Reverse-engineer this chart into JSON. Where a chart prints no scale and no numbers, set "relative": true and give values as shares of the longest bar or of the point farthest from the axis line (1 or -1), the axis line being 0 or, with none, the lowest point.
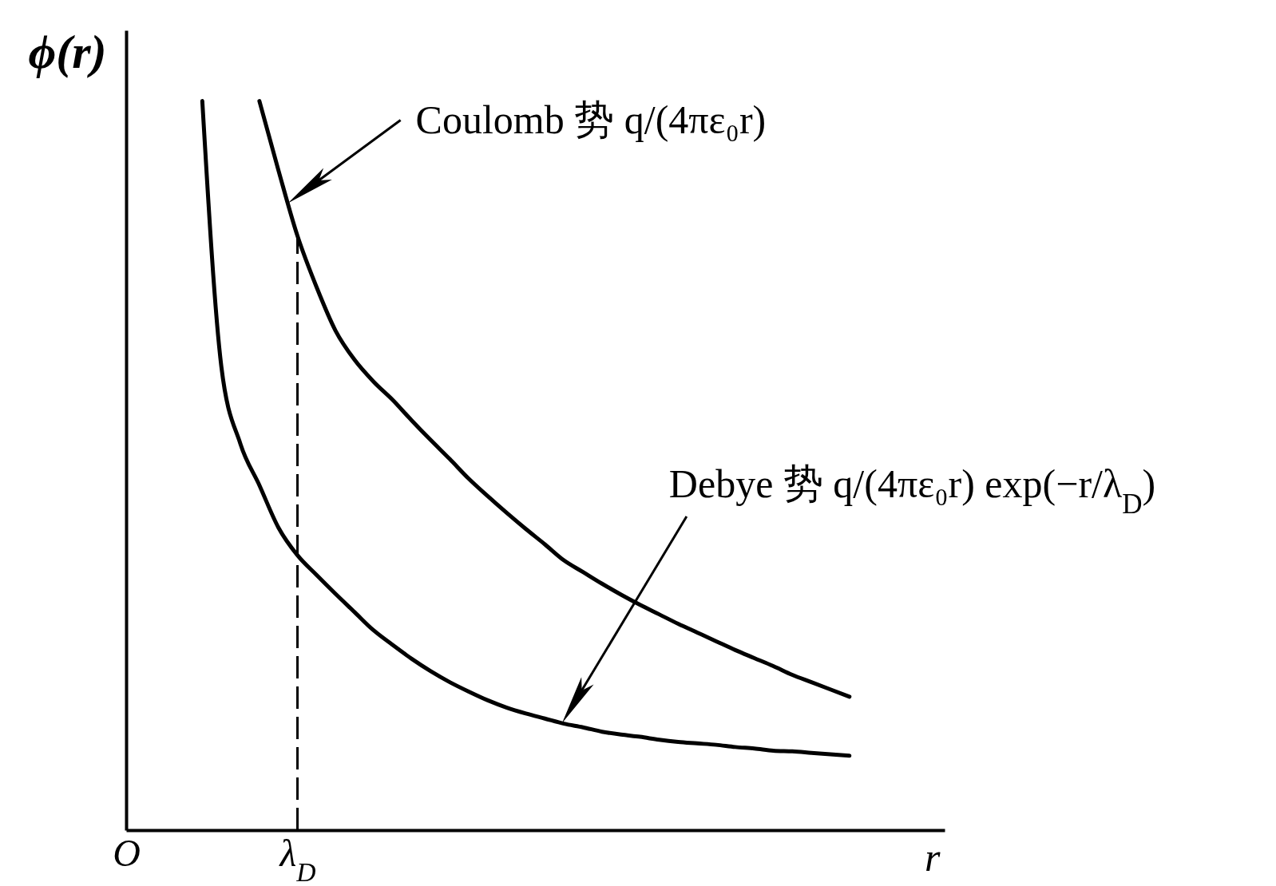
{
  "chart_data": {
    "type": "line",
    "relative": true,
    "ylabel": "ϕ(r)",
    "xlabel": "r",
    "tick_labels": "x",
    "categories": [
      "O",
      null,
      null,
      null,
      null,
      null,
      null,
      null,
      null,
      "λ$_{D}$",
      null,
      null,
      null,
      null,
      null,
      null,
      null,
      null,
      null,
      null,
      null,
      null,
      null,
      null,
      null,
      null,
      null,
      null,
      null,
      null,
      null,
      null,
      null,
      null,
      null,
      null,
      null,
      null,
      null,
      null,
      null,
      null,
      null,
      null
    ],
    "series": [
      {
        "color": "#000000",
        "values": [
          null,
          null,
          null,
          null,
          null,
          null,
          null,
          1.0,
          0.905,
          0.815,
          0.745,
          0.685,
          0.645,
          0.615,
          0.59,
          0.562,
          0.535,
          0.509,
          0.482,
          0.458,
          0.435,
          0.413,
          0.392,
          0.37,
          0.354,
          0.338,
          0.323,
          0.309,
          0.296,
          0.283,
          0.271,
          0.259,
          0.247,
          0.236,
          0.225,
          0.213,
          0.203,
          0.193,
          0.183,
          null,
          null,
          null,
          null,
          null
        ]
      },
      {
        "color": "#000000",
        "values": [
          null,
          null,
          null,
          null,
          1.0,
          0.636,
          0.53,
          0.473,
          0.415,
          0.377,
          0.35,
          0.324,
          0.299,
          0.274,
          0.254,
          0.235,
          0.218,
          0.203,
          0.19,
          0.178,
          0.168,
          0.16,
          0.153,
          0.146,
          0.141,
          0.135,
          0.131,
          0.128,
          0.124,
          0.121,
          0.119,
          0.117,
          0.114,
          0.112,
          0.109,
          0.108,
          0.106,
          0.104,
          0.102,
          null,
          null,
          null,
          null,
          null
        ]
      }
    ],
    "ref_lines": [
      {
        "axis": "x",
        "value": "λ$_{D}$",
        "color": "#000000",
        "line_style": "dashed"
      }
    ],
    "annotations": [
      "Coulomb 势 q/(4πε₀r)",
      "Debye 势 q/(4πε₀r) exp(−r/λ$_{D}$)"
    ]
  }
}
